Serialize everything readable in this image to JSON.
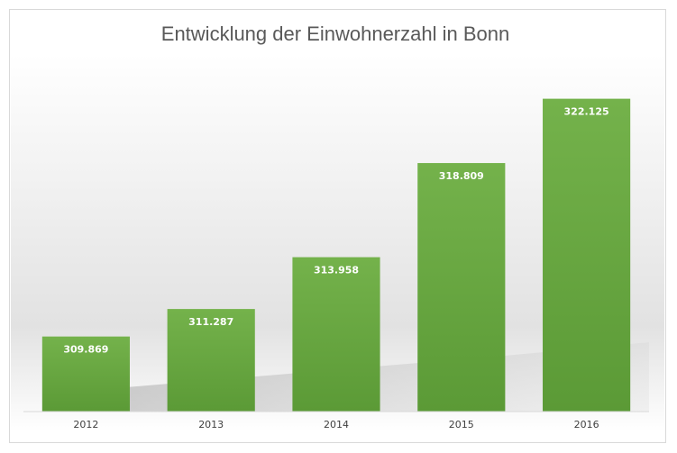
{
  "chart_data": {
    "type": "bar",
    "title": "Entwicklung der Einwohnerzahl in Bonn",
    "categories": [
      "2012",
      "2013",
      "2014",
      "2015",
      "2016"
    ],
    "values": [
      309869,
      311287,
      313958,
      318809,
      322125
    ],
    "value_labels": [
      "309.869",
      "311.287",
      "313.958",
      "318.809",
      "322.125"
    ],
    "xlabel": "",
    "ylabel": "",
    "ylim": [
      306000,
      323500
    ],
    "grid": false,
    "legend": "none",
    "colors": {
      "bar_top": "#74b24b",
      "bar_bottom": "#5b9a36",
      "title": "#595959",
      "axis": "#d9d9d9"
    }
  }
}
